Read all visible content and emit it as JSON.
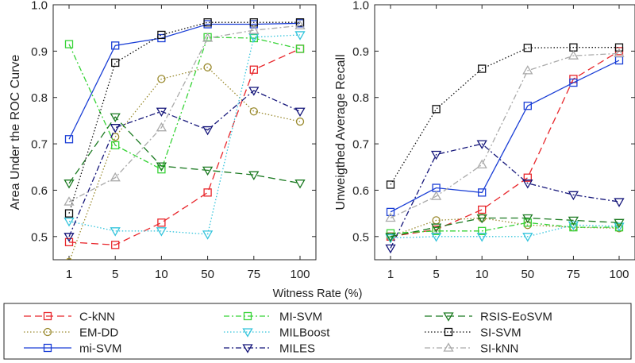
{
  "chart_data": [
    {
      "type": "line",
      "ylabel": "Area Under the ROC Curve",
      "ylim": [
        0.45,
        1.0
      ],
      "yticks": [
        "0.5",
        "0.6",
        "0.7",
        "0.8",
        "0.9",
        "1.0"
      ],
      "categories": [
        "1",
        "5",
        "10",
        "50",
        "75",
        "100"
      ],
      "grid": false,
      "series": [
        {
          "name": "C-kNN",
          "values": [
            0.488,
            0.482,
            0.53,
            0.595,
            0.86,
            0.905
          ]
        },
        {
          "name": "EM-DD",
          "values": [
            0.445,
            0.715,
            0.84,
            0.865,
            0.77,
            0.748
          ]
        },
        {
          "name": "mi-SVM",
          "values": [
            0.71,
            0.912,
            0.928,
            0.958,
            0.958,
            0.96
          ]
        },
        {
          "name": "MI-SVM",
          "values": [
            0.915,
            0.697,
            0.645,
            0.93,
            0.928,
            0.905
          ]
        },
        {
          "name": "MILBoost",
          "values": [
            0.533,
            0.512,
            0.512,
            0.505,
            0.93,
            0.935
          ]
        },
        {
          "name": "MILES",
          "values": [
            0.5,
            0.735,
            0.77,
            0.73,
            0.815,
            0.77
          ]
        },
        {
          "name": "RSIS-EoSVM",
          "values": [
            0.615,
            0.758,
            0.652,
            0.643,
            0.633,
            0.615
          ]
        },
        {
          "name": "SI-SVM",
          "values": [
            0.55,
            0.875,
            0.935,
            0.962,
            0.962,
            0.962
          ]
        },
        {
          "name": "SI-kNN",
          "values": [
            0.575,
            0.627,
            0.735,
            0.928,
            0.945,
            0.955
          ]
        }
      ]
    },
    {
      "type": "line",
      "ylabel": "Unweigthed Average Recall",
      "ylim": [
        0.45,
        1.0
      ],
      "yticks": [
        "0.5",
        "0.6",
        "0.7",
        "0.8",
        "0.9",
        "1.0"
      ],
      "categories": [
        "1",
        "5",
        "10",
        "50",
        "75",
        "100"
      ],
      "grid": false,
      "series": [
        {
          "name": "C-kNN",
          "values": [
            0.5,
            0.515,
            0.558,
            0.627,
            0.84,
            0.9
          ]
        },
        {
          "name": "EM-DD",
          "values": [
            0.5,
            0.535,
            0.54,
            0.525,
            0.52,
            0.518
          ]
        },
        {
          "name": "mi-SVM",
          "values": [
            0.553,
            0.605,
            0.595,
            0.782,
            0.832,
            0.88
          ]
        },
        {
          "name": "MI-SVM",
          "values": [
            0.507,
            0.512,
            0.512,
            0.53,
            0.52,
            0.52
          ]
        },
        {
          "name": "MILBoost",
          "values": [
            0.497,
            0.5,
            0.5,
            0.5,
            0.525,
            0.522
          ]
        },
        {
          "name": "MILES",
          "values": [
            0.475,
            0.677,
            0.7,
            0.615,
            0.59,
            0.575
          ]
        },
        {
          "name": "RSIS-EoSVM",
          "values": [
            0.5,
            0.52,
            0.54,
            0.54,
            0.535,
            0.53
          ]
        },
        {
          "name": "SI-SVM",
          "values": [
            0.612,
            0.775,
            0.862,
            0.907,
            0.908,
            0.908
          ]
        },
        {
          "name": "SI-kNN",
          "values": [
            0.54,
            0.587,
            0.655,
            0.858,
            0.89,
            0.895
          ]
        }
      ]
    }
  ],
  "shared": {
    "xlabel": "Witness Rate (%)"
  },
  "series_styles": {
    "C-kNN": {
      "color": "#e8262b",
      "dash": "9,5",
      "marker": "square"
    },
    "EM-DD": {
      "color": "#9a8a2e",
      "dash": "1.5,2.5",
      "marker": "circle"
    },
    "mi-SVM": {
      "color": "#1b3fd6",
      "dash": "",
      "marker": "square"
    },
    "MI-SVM": {
      "color": "#36d336",
      "dash": "7,3,2,3",
      "marker": "square"
    },
    "MILBoost": {
      "color": "#33c4dc",
      "dash": "1.5,2.5",
      "marker": "triangle-down"
    },
    "MILES": {
      "color": "#15167a",
      "dash": "7,3,2,3",
      "marker": "triangle-down"
    },
    "RSIS-EoSVM": {
      "color": "#1b7a21",
      "dash": "9,5",
      "marker": "triangle-down"
    },
    "SI-SVM": {
      "color": "#111111",
      "dash": "1.5,2.5",
      "marker": "square"
    },
    "SI-kNN": {
      "color": "#aaaaaa",
      "dash": "7,3,2,3",
      "marker": "triangle-up"
    }
  },
  "legend": {
    "placement": "bottom",
    "columns": [
      [
        "C-kNN",
        "EM-DD",
        "mi-SVM"
      ],
      [
        "MI-SVM",
        "MILBoost",
        "MILES"
      ],
      [
        "RSIS-EoSVM",
        "SI-SVM",
        "SI-kNN"
      ]
    ]
  }
}
